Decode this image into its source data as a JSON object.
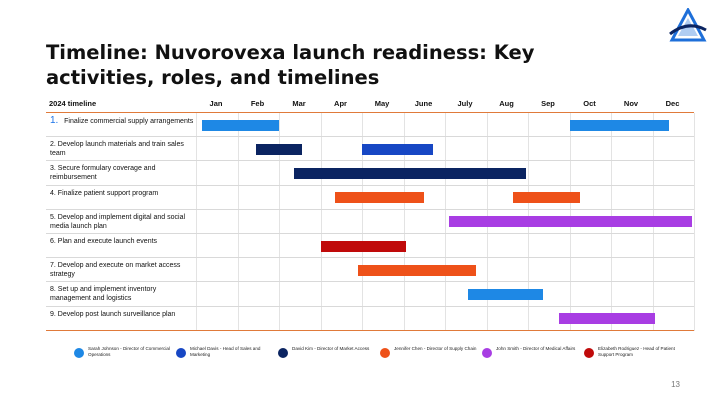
{
  "title": "Timeline: Nuvorovexa launch readiness: Key activities, roles, and timelines",
  "timeline": {
    "year_label": "2024 timeline",
    "months": [
      "Jan",
      "Feb",
      "Mar",
      "Apr",
      "May",
      "June",
      "July",
      "Aug",
      "Sep",
      "Oct",
      "Nov",
      "Dec"
    ],
    "tasks": [
      {
        "num": "1.",
        "label": "Finalize commercial supply arrangements",
        "bars": [
          {
            "start": 0.15,
            "end": 2.0,
            "owner": "sarah"
          },
          {
            "start": 9.0,
            "end": 11.4,
            "owner": "sarah"
          }
        ]
      },
      {
        "num": "2.",
        "label": "Develop launch materials and train sales team",
        "bars": [
          {
            "start": 1.45,
            "end": 2.55,
            "owner": "david"
          },
          {
            "start": 4.0,
            "end": 5.7,
            "owner": "michael"
          }
        ]
      },
      {
        "num": "3.",
        "label": "Secure formulary coverage and reimbursement",
        "bars": [
          {
            "start": 2.35,
            "end": 7.95,
            "owner": "david"
          }
        ]
      },
      {
        "num": "4.",
        "label": "Finalize patient support program",
        "bars": [
          {
            "start": 3.35,
            "end": 5.5,
            "owner": "jennifer"
          },
          {
            "start": 7.65,
            "end": 9.25,
            "owner": "jennifer"
          }
        ]
      },
      {
        "num": "5.",
        "label": "Develop and implement digital and social media launch plan",
        "bars": [
          {
            "start": 6.1,
            "end": 11.95,
            "owner": "john"
          }
        ]
      },
      {
        "num": "6.",
        "label": "Plan and execute launch events",
        "bars": [
          {
            "start": 3.0,
            "end": 5.05,
            "owner": "elizabeth"
          }
        ]
      },
      {
        "num": "7.",
        "label": "Develop and execute on market access strategy",
        "bars": [
          {
            "start": 3.9,
            "end": 6.75,
            "owner": "jennifer"
          }
        ]
      },
      {
        "num": "8.",
        "label": "Set up and implement inventory management and logistics",
        "bars": [
          {
            "start": 6.55,
            "end": 8.35,
            "owner": "sarah"
          }
        ]
      },
      {
        "num": "9.",
        "label": "Develop post launch surveillance plan",
        "bars": [
          {
            "start": 8.75,
            "end": 11.05,
            "owner": "john"
          }
        ]
      }
    ]
  },
  "legend": [
    {
      "key": "sarah",
      "text": "Sarah Johnson - Director of Commercial Operations",
      "color": "#1e88e5"
    },
    {
      "key": "michael",
      "text": "Michael Davis - Head of Sales and Marketing",
      "color": "#1747c4"
    },
    {
      "key": "david",
      "text": "David Kim - Director of Market Access",
      "color": "#0b2461"
    },
    {
      "key": "jennifer",
      "text": "Jennifer Chen - Director of Supply Chain",
      "color": "#ee5119"
    },
    {
      "key": "john",
      "text": "John Smith - Director of Medical Affairs",
      "color": "#a83de3"
    },
    {
      "key": "elizabeth",
      "text": "Elizabeth Rodriguez - Head of Patient Support Program",
      "color": "#c00a0a"
    }
  ],
  "page_number": "13",
  "logo": {
    "icon": "triangle-a-logo",
    "color": "#1e6fd9"
  }
}
